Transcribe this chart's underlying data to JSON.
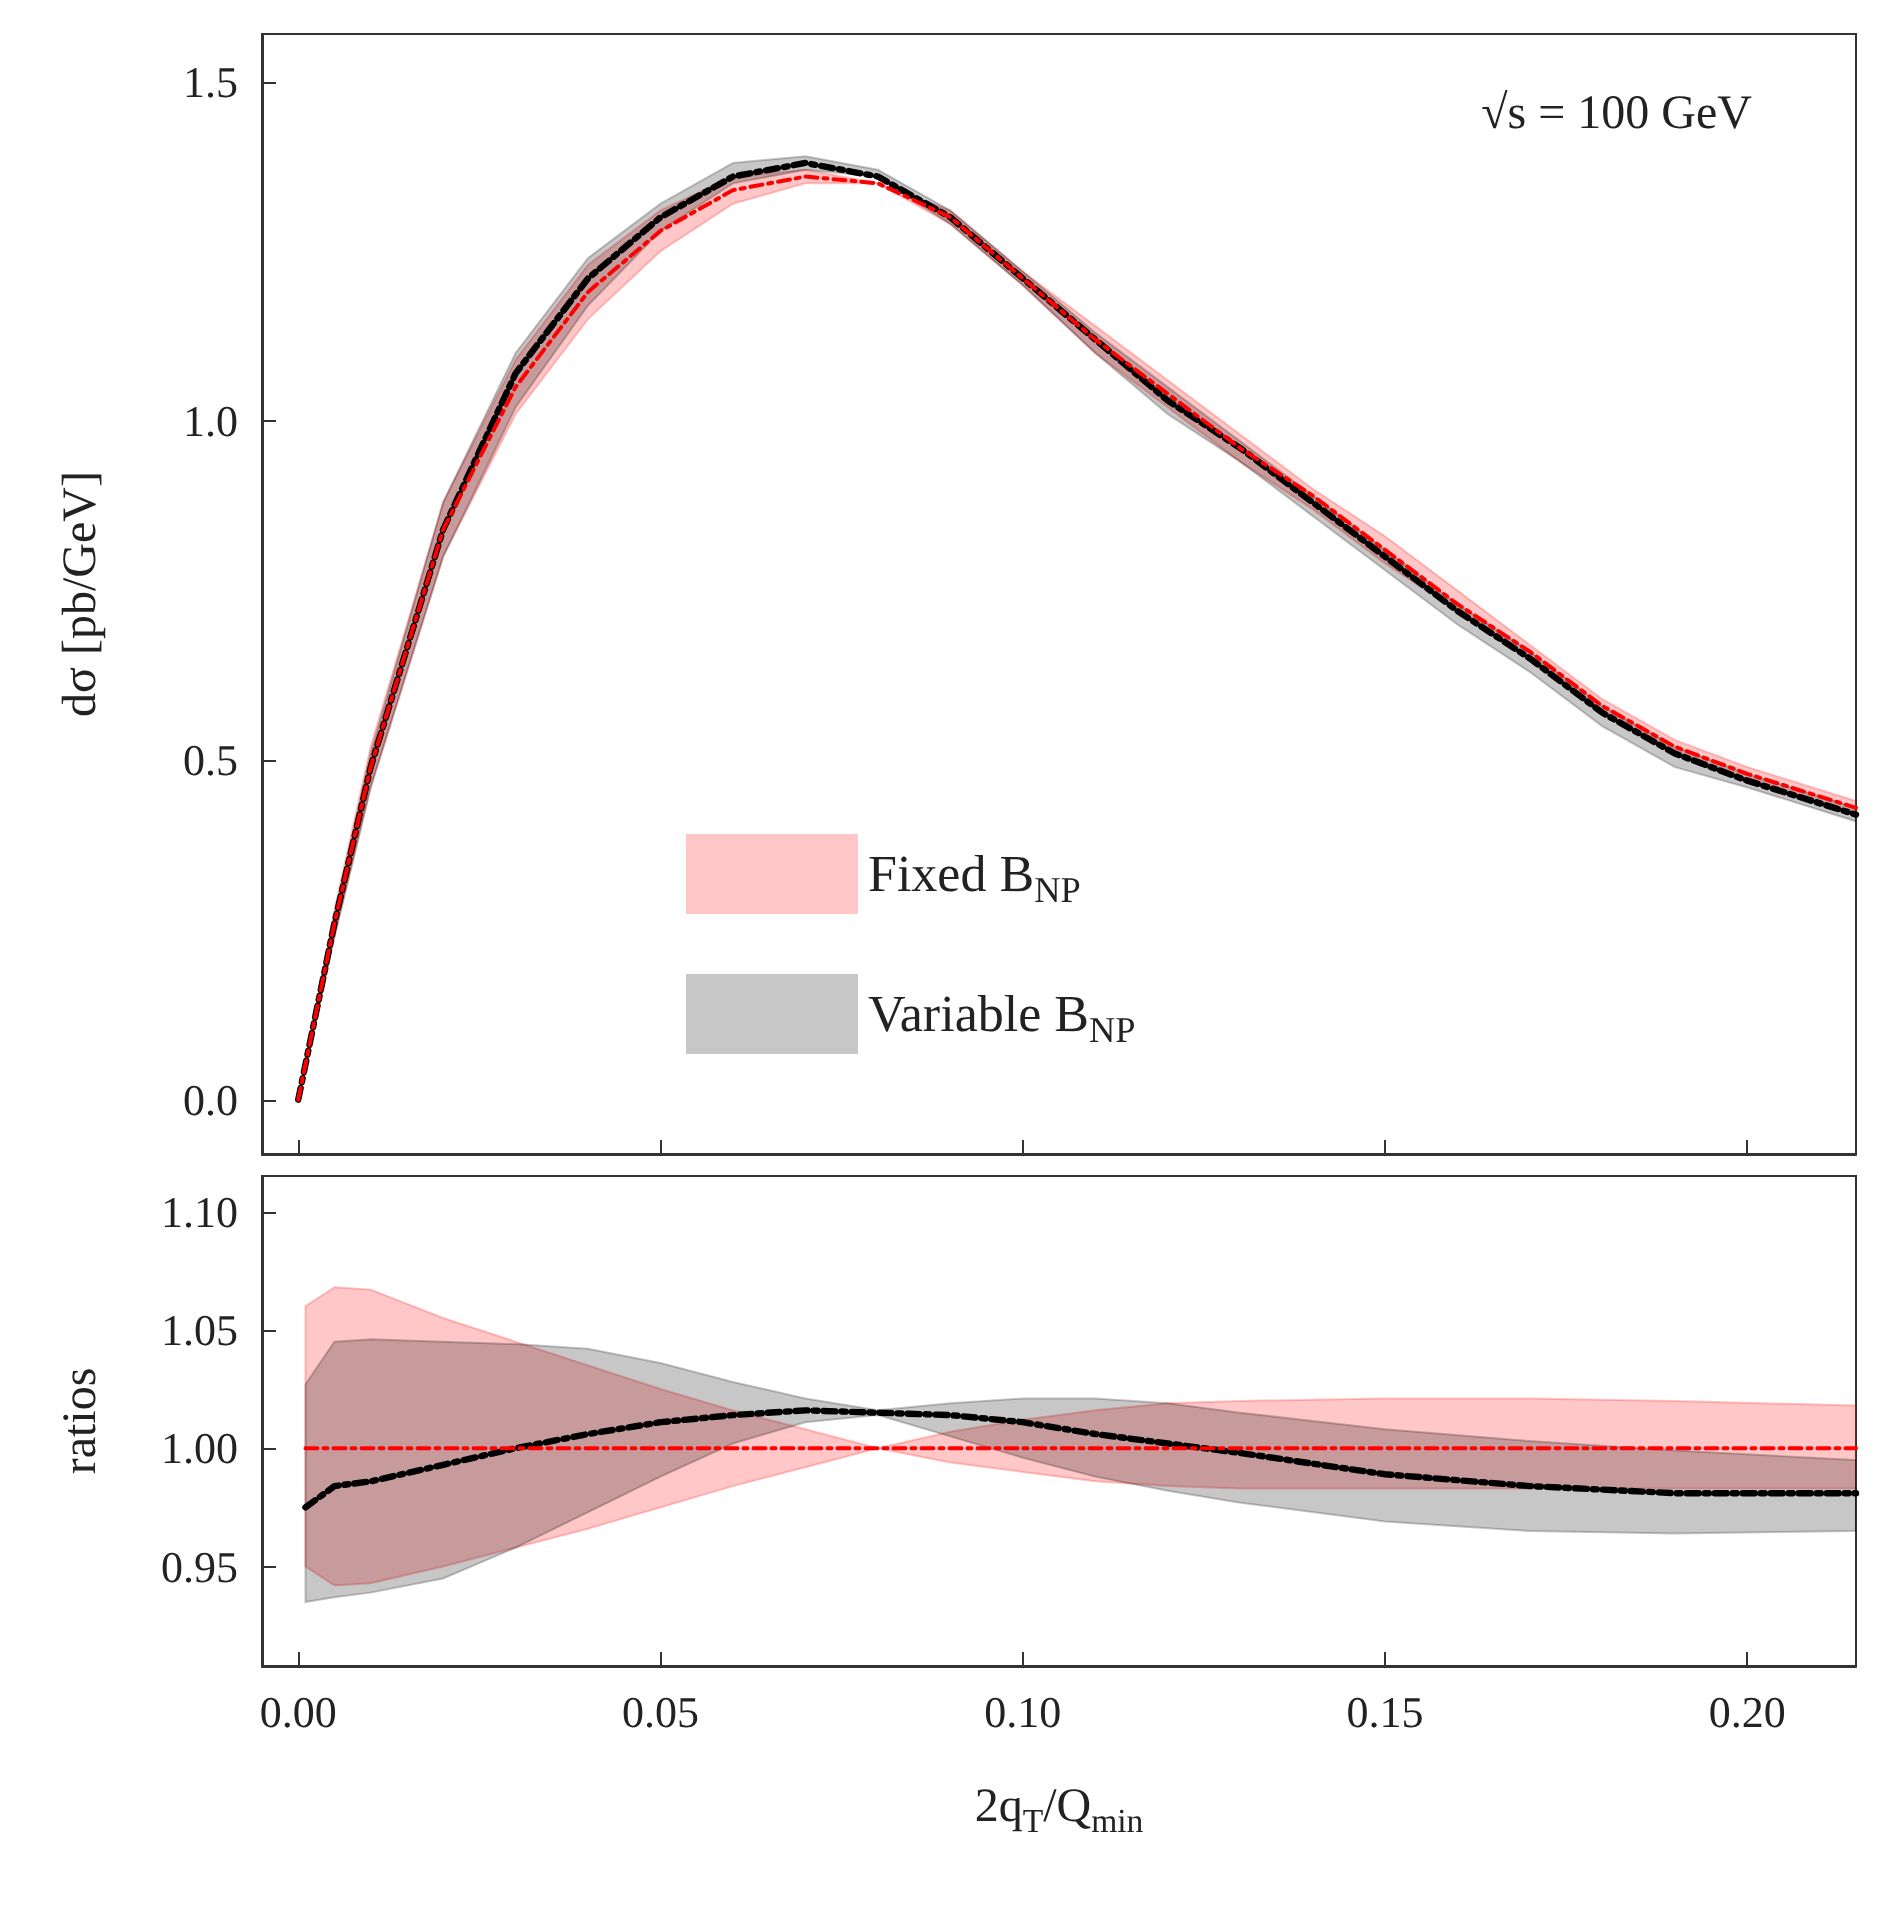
{
  "chart_data": [
    {
      "type": "line",
      "ylabel": "dσ [pb/GeV]",
      "annotations": [
        "√s = 100 GeV"
      ],
      "legend": "bottom",
      "line_style": "dashed",
      "tick_labels": "y",
      "xlim": [
        -0.005,
        0.215
      ],
      "xticks": [
        {
          "value": 0,
          "label": null
        },
        {
          "value": 0.05,
          "label": null
        },
        {
          "value": 0.1,
          "label": null
        },
        {
          "value": 0.15,
          "label": null
        },
        {
          "value": 0.2,
          "label": null
        }
      ],
      "ylim": [
        -0.08,
        1.57
      ],
      "yticks": [
        {
          "value": 0,
          "label": "0.0"
        },
        0.5,
        {
          "value": 1,
          "label": "1.0"
        },
        1.5
      ],
      "x": [
        0,
        0.005,
        0.01,
        0.02,
        0.03,
        0.04,
        0.05,
        0.06,
        0.07,
        0.08,
        0.09,
        0.1,
        0.11,
        0.12,
        0.13,
        0.14,
        0.15,
        0.16,
        0.17,
        0.18,
        0.19,
        0.2,
        0.215
      ],
      "series": [
        {
          "name": "Fixed B$_{NP}$",
          "color": "#ff0000",
          "values": [
            0,
            0.26,
            0.49,
            0.84,
            1.05,
            1.19,
            1.28,
            1.34,
            1.36,
            1.35,
            1.3,
            1.21,
            1.12,
            1.04,
            0.96,
            0.89,
            0.81,
            0.73,
            0.66,
            0.58,
            0.52,
            0.48,
            0.43
          ],
          "lower": [
            0,
            0.24,
            0.46,
            0.8,
            1.01,
            1.15,
            1.25,
            1.32,
            1.35,
            1.35,
            1.29,
            1.2,
            1.1,
            1.02,
            0.94,
            0.87,
            0.79,
            0.72,
            0.65,
            0.57,
            0.51,
            0.47,
            0.42
          ],
          "upper": [
            0,
            0.28,
            0.52,
            0.88,
            1.09,
            1.23,
            1.31,
            1.36,
            1.37,
            1.35,
            1.31,
            1.22,
            1.14,
            1.06,
            0.98,
            0.9,
            0.83,
            0.75,
            0.67,
            0.59,
            0.53,
            0.49,
            0.44
          ]
        },
        {
          "name": "Variable B$_{NP}$",
          "color": "#000000",
          "values": [
            0,
            0.26,
            0.49,
            0.84,
            1.07,
            1.21,
            1.3,
            1.36,
            1.38,
            1.36,
            1.3,
            1.21,
            1.12,
            1.03,
            0.96,
            0.88,
            0.8,
            0.72,
            0.65,
            0.57,
            0.51,
            0.47,
            0.42
          ],
          "lower": [
            0,
            0.24,
            0.46,
            0.8,
            1.02,
            1.17,
            1.28,
            1.35,
            1.37,
            1.36,
            1.29,
            1.2,
            1.1,
            1.01,
            0.94,
            0.86,
            0.78,
            0.7,
            0.63,
            0.55,
            0.49,
            0.46,
            0.41
          ],
          "upper": [
            0,
            0.27,
            0.51,
            0.88,
            1.1,
            1.24,
            1.32,
            1.38,
            1.39,
            1.37,
            1.31,
            1.22,
            1.13,
            1.05,
            0.97,
            0.89,
            0.81,
            0.73,
            0.66,
            0.58,
            0.52,
            0.48,
            0.43
          ]
        }
      ]
    },
    {
      "type": "line",
      "xlabel": "2q$_{T}$/Q$_{min}$",
      "ylabel": "ratios",
      "line_style": "dashed",
      "xlim": [
        -0.005,
        0.215
      ],
      "xticks": [
        {
          "value": 0,
          "label": "0.00"
        },
        0.05,
        {
          "value": 0.1,
          "label": "0.10"
        },
        0.15,
        {
          "value": 0.2,
          "label": "0.20"
        }
      ],
      "ylim": [
        0.908,
        1.115
      ],
      "yticks": [
        0.95,
        {
          "value": 1,
          "label": "1.00"
        },
        1.05,
        {
          "value": 1.1,
          "label": "1.10"
        }
      ],
      "x": [
        0.001,
        0.005,
        0.01,
        0.02,
        0.03,
        0.04,
        0.05,
        0.06,
        0.07,
        0.08,
        0.09,
        0.1,
        0.11,
        0.12,
        0.13,
        0.15,
        0.17,
        0.19,
        0.215
      ],
      "series": [
        {
          "color": "#ff0000",
          "values": [
            1,
            1,
            1,
            1,
            1,
            1,
            1,
            1,
            1,
            1,
            1,
            1,
            1,
            1,
            1,
            1,
            1,
            1,
            1
          ],
          "lower": [
            0.95,
            0.942,
            0.943,
            0.95,
            0.958,
            0.966,
            0.975,
            0.984,
            0.992,
            1,
            0.994,
            0.99,
            0.986,
            0.984,
            0.983,
            0.983,
            0.983,
            0.983,
            0.983
          ],
          "upper": [
            1.06,
            1.068,
            1.067,
            1.055,
            1.045,
            1.035,
            1.025,
            1.016,
            1.008,
            1,
            1.007,
            1.012,
            1.016,
            1.019,
            1.02,
            1.021,
            1.021,
            1.02,
            1.018
          ]
        },
        {
          "color": "#000000",
          "values": [
            0.975,
            0.984,
            0.986,
            0.993,
            1,
            1.006,
            1.011,
            1.014,
            1.016,
            1.015,
            1.014,
            1.011,
            1.006,
            1.002,
            0.998,
            0.989,
            0.984,
            0.981,
            0.981
          ],
          "lower": [
            0.935,
            0.937,
            0.939,
            0.945,
            0.958,
            0.973,
            0.988,
            1.002,
            1.011,
            1.014,
            1.005,
            0.996,
            0.988,
            0.982,
            0.977,
            0.969,
            0.965,
            0.964,
            0.965
          ],
          "upper": [
            1.027,
            1.045,
            1.046,
            1.045,
            1.044,
            1.042,
            1.036,
            1.028,
            1.021,
            1.016,
            1.019,
            1.021,
            1.021,
            1.019,
            1.015,
            1.008,
            1.003,
            0.999,
            0.995
          ]
        }
      ]
    }
  ]
}
